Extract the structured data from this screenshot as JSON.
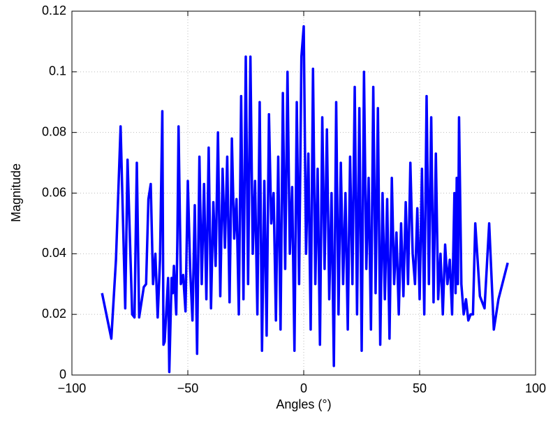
{
  "chart_data": {
    "type": "line",
    "xlabel": "Angles (°)",
    "ylabel": "Magnitude",
    "xlim": [
      -100,
      100
    ],
    "xticks": [
      {
        "value": -100,
        "label": "−100"
      },
      {
        "value": -50,
        "label": "−50"
      },
      0,
      50,
      100
    ],
    "ylim": [
      0,
      0.12
    ],
    "yticks": [
      0,
      0.02,
      0.04,
      0.06,
      0.08,
      0.1,
      0.12
    ],
    "grid": true,
    "x": [
      -87,
      -83,
      -81,
      -79,
      -77,
      -76,
      -74,
      -73,
      -72,
      -71,
      -69,
      -68,
      -67,
      -66,
      -65,
      -64,
      -63,
      -62,
      -61,
      -60.5,
      -60,
      -59,
      -58.5,
      -58,
      -57,
      -56.5,
      -56,
      -55,
      -54.5,
      -54,
      -53,
      -52,
      -51,
      -50,
      -49,
      -48,
      -47,
      -46,
      -45,
      -44,
      -43,
      -42,
      -41,
      -40,
      -39,
      -38,
      -37,
      -36,
      -35,
      -34,
      -33,
      -32,
      -31,
      -30,
      -29,
      -28,
      -27,
      -26,
      -25,
      -24,
      -23,
      -22,
      -21,
      -20,
      -19,
      -18,
      -17,
      -16,
      -15,
      -14,
      -13,
      -12,
      -11,
      -10,
      -9,
      -8,
      -7,
      -6,
      -5,
      -4,
      -3,
      -2,
      -1,
      0,
      1,
      2,
      3,
      4,
      5,
      6,
      7,
      8,
      9,
      10,
      11,
      12,
      13,
      14,
      15,
      16,
      17,
      18,
      19,
      20,
      21,
      22,
      23,
      24,
      25,
      26,
      27,
      28,
      29,
      30,
      31,
      32,
      33,
      34,
      35,
      36,
      37,
      38,
      39,
      40,
      41,
      42,
      43,
      44,
      45,
      46,
      47,
      48,
      49,
      50,
      51,
      52,
      53,
      54,
      55,
      56,
      57,
      58,
      59,
      60,
      61,
      62,
      63,
      64,
      65,
      65.5,
      66,
      66.5,
      67,
      68,
      69,
      70,
      71,
      72,
      73,
      74,
      76,
      78,
      80,
      82,
      84,
      88
    ],
    "series": [
      {
        "name": "Magnitude",
        "color": "#0000ff",
        "values": [
          0.027,
          0.012,
          0.038,
          0.082,
          0.022,
          0.071,
          0.02,
          0.019,
          0.07,
          0.019,
          0.029,
          0.03,
          0.058,
          0.063,
          0.03,
          0.04,
          0.019,
          0.038,
          0.087,
          0.01,
          0.011,
          0.025,
          0.032,
          0.001,
          0.032,
          0.027,
          0.036,
          0.02,
          0.045,
          0.082,
          0.03,
          0.033,
          0.021,
          0.064,
          0.035,
          0.018,
          0.056,
          0.007,
          0.072,
          0.03,
          0.063,
          0.025,
          0.075,
          0.022,
          0.057,
          0.036,
          0.08,
          0.026,
          0.068,
          0.042,
          0.072,
          0.024,
          0.078,
          0.045,
          0.058,
          0.02,
          0.092,
          0.025,
          0.105,
          0.03,
          0.105,
          0.04,
          0.064,
          0.02,
          0.09,
          0.008,
          0.064,
          0.013,
          0.086,
          0.05,
          0.06,
          0.018,
          0.072,
          0.015,
          0.093,
          0.035,
          0.1,
          0.04,
          0.062,
          0.008,
          0.09,
          0.03,
          0.105,
          0.115,
          0.04,
          0.073,
          0.015,
          0.101,
          0.03,
          0.068,
          0.01,
          0.085,
          0.035,
          0.081,
          0.025,
          0.06,
          0.003,
          0.09,
          0.02,
          0.07,
          0.03,
          0.06,
          0.015,
          0.072,
          0.03,
          0.095,
          0.02,
          0.088,
          0.008,
          0.1,
          0.035,
          0.065,
          0.015,
          0.095,
          0.027,
          0.088,
          0.01,
          0.06,
          0.025,
          0.058,
          0.012,
          0.065,
          0.03,
          0.047,
          0.02,
          0.05,
          0.026,
          0.057,
          0.03,
          0.07,
          0.04,
          0.03,
          0.055,
          0.025,
          0.068,
          0.02,
          0.092,
          0.03,
          0.085,
          0.024,
          0.073,
          0.025,
          0.04,
          0.02,
          0.043,
          0.03,
          0.038,
          0.02,
          0.06,
          0.027,
          0.065,
          0.03,
          0.085,
          0.03,
          0.02,
          0.025,
          0.018,
          0.02,
          0.02,
          0.05,
          0.026,
          0.022,
          0.05,
          0.015,
          0.025,
          0.037
        ]
      }
    ]
  }
}
